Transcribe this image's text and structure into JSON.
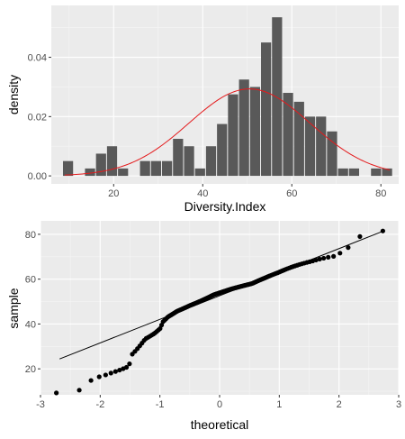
{
  "chart_data": [
    {
      "type": "bar",
      "subtype": "histogram-with-normal-density",
      "xlabel": "Diversity.Index",
      "ylabel": "density",
      "xlim": [
        6,
        84
      ],
      "ylim": [
        -0.0027,
        0.0575
      ],
      "x_ticks": [
        "20",
        "40",
        "60",
        "80"
      ],
      "y_ticks": [
        "0.00",
        "0.02",
        "0.04"
      ],
      "bin_width": 2.47,
      "bins": {
        "centers": [
          9.86,
          12.33,
          14.8,
          17.27,
          19.74,
          22.21,
          24.68,
          27.15,
          29.62,
          32.09,
          34.56,
          37.03,
          39.5,
          41.97,
          44.44,
          46.91,
          49.38,
          51.85,
          54.32,
          56.79,
          59.26,
          61.73,
          64.2,
          66.67,
          69.14,
          71.61,
          74.08,
          76.55,
          79.02,
          81.49
        ],
        "values": [
          0.005,
          0.0,
          0.0025,
          0.0075,
          0.01,
          0.0025,
          0.0,
          0.005,
          0.005,
          0.005,
          0.0125,
          0.01,
          0.0025,
          0.01,
          0.0175,
          0.0275,
          0.0325,
          0.03,
          0.045,
          0.0535,
          0.028,
          0.025,
          0.02,
          0.02,
          0.015,
          0.0025,
          0.0025,
          0.0,
          0.0025,
          0.0025
        ]
      },
      "normal_curve": {
        "mean": 50.5,
        "sd": 13.6,
        "color": "#e41a1c"
      },
      "grid": true,
      "bar_color": "#595959"
    },
    {
      "type": "scatter",
      "subtype": "qq-plot",
      "xlabel": "theoretical",
      "ylabel": "sample",
      "xlim": [
        -3,
        3
      ],
      "ylim": [
        8.4,
        86
      ],
      "x_ticks": [
        "-3",
        "-2",
        "-1",
        "0",
        "1",
        "2",
        "3"
      ],
      "y_ticks": [
        "20",
        "40",
        "60",
        "80"
      ],
      "reference_line": {
        "x": [
          -2.68,
          2.72
        ],
        "y": [
          24.4,
          81.2
        ]
      },
      "grid": true,
      "point_color": "#000000"
    }
  ]
}
